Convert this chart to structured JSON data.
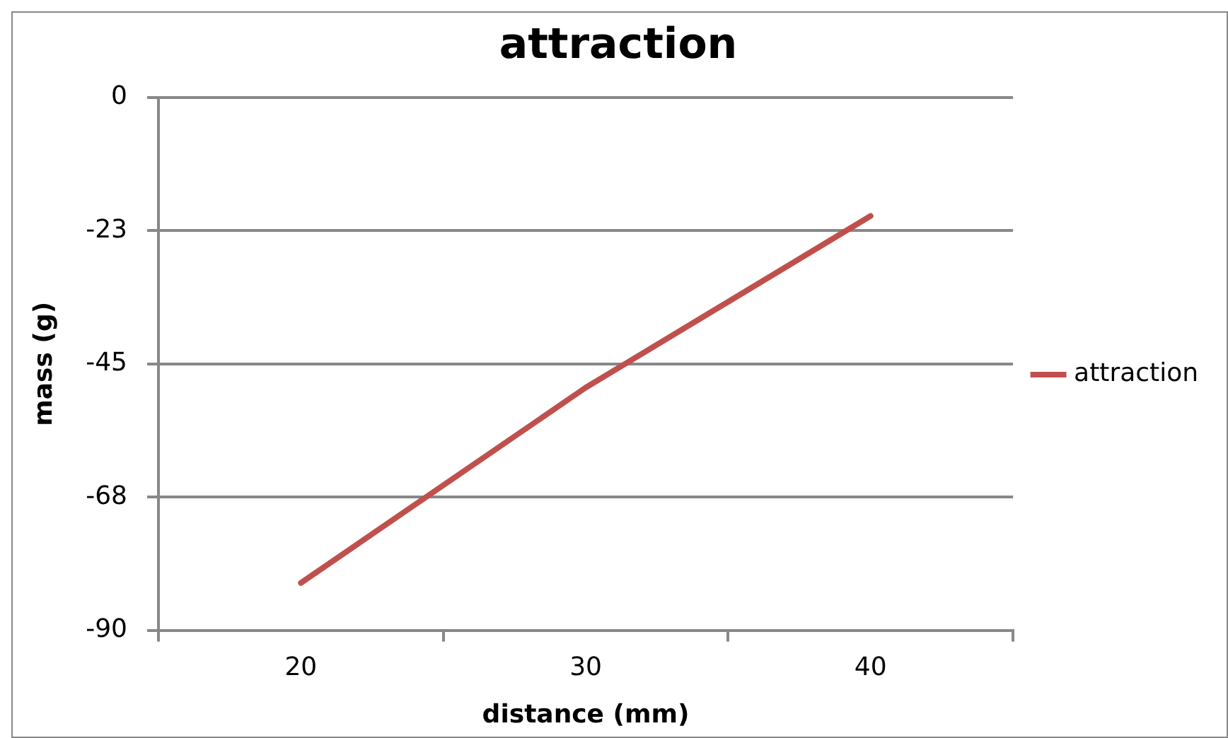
{
  "chart_data": {
    "type": "line",
    "title": "attraction",
    "xlabel": "distance (mm)",
    "ylabel": "mass (g)",
    "categories": [
      "20",
      "30",
      "40"
    ],
    "series": [
      {
        "name": "attraction",
        "color": "#c0504d",
        "values": [
          -82,
          -49,
          -20
        ]
      }
    ],
    "ylim": [
      -90,
      0
    ],
    "yticks": [
      0,
      {
        "value": -22.5,
        "label": "-23"
      },
      -45,
      {
        "value": -67.5,
        "label": "-68"
      },
      -90
    ],
    "grid": "y",
    "legend": "right",
    "marker": "none",
    "line_style": "solid"
  }
}
